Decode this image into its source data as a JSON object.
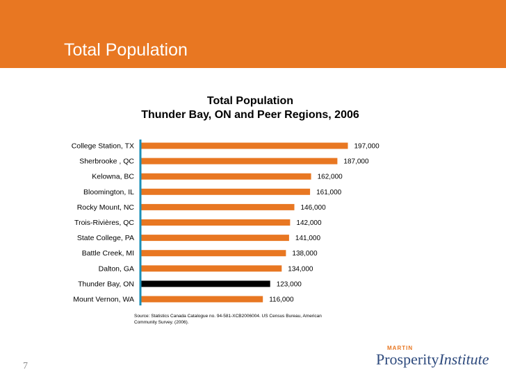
{
  "slide": {
    "title": "Total Population",
    "number": "7",
    "source": "Source: Statistics Canada Catalogue no. 94-581-XCB2006004. US Census Bureau, American Community Survey. (2006).",
    "logo": {
      "top": "MARTIN",
      "main1": "Prosperity",
      "main2": "Institute"
    }
  },
  "colors": {
    "header": "#E87722",
    "bar": "#E87722",
    "highlight": "#000000",
    "axis": "#1B8FB7"
  },
  "chart_data": {
    "type": "bar",
    "orientation": "horizontal",
    "title": "Total Population",
    "subtitle": "Thunder Bay, ON and Peer Regions, 2006",
    "categories": [
      "College Station, TX",
      "Sherbrooke , QC",
      "Kelowna, BC",
      "Bloomington, IL",
      "Rocky Mount, NC",
      "Trois-Rivières, QC",
      "State College, PA",
      "Battle Creek, MI",
      "Dalton, GA",
      "Thunder Bay, ON",
      "Mount Vernon, WA"
    ],
    "values": [
      197000,
      187000,
      162000,
      161000,
      146000,
      142000,
      141000,
      138000,
      134000,
      123000,
      116000
    ],
    "value_labels": [
      "197,000",
      "187,000",
      "162,000",
      "161,000",
      "146,000",
      "142,000",
      "141,000",
      "138,000",
      "134,000",
      "123,000",
      "116,000"
    ],
    "highlight": "Thunder Bay, ON",
    "xlim": [
      0,
      200000
    ],
    "xlabel": "",
    "ylabel": "",
    "grid": false
  }
}
